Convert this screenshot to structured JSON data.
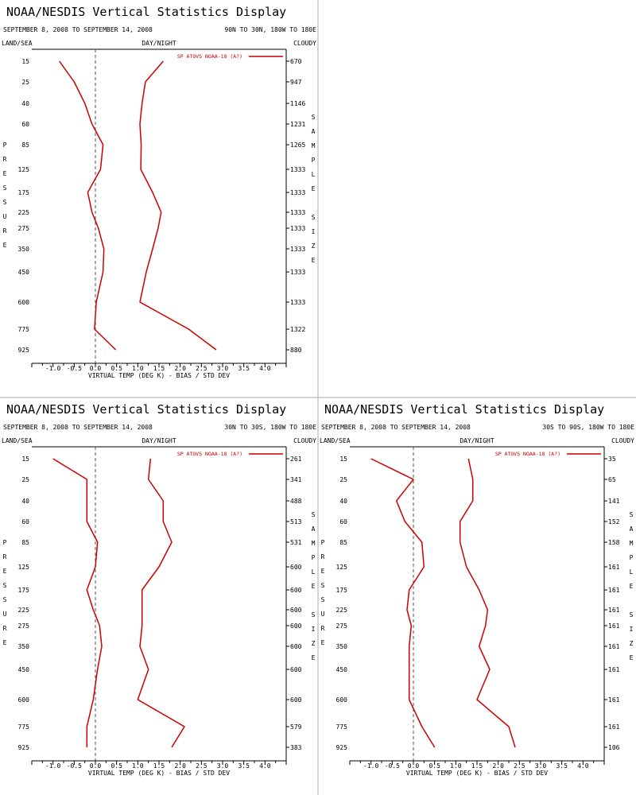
{
  "page": {
    "background": "#ffffff",
    "divider_color": "#aaaaaa"
  },
  "chart_data": [
    {
      "type": "line",
      "title": "NOAA/NESDIS Vertical Statistics Display",
      "date_range": "SEPTEMBER 8, 2008 TO SEPTEMBER 14, 2008",
      "region": "90N TO 30N, 180W TO 180E",
      "left_header": "LAND/SEA",
      "center_header": "DAY/NIGHT",
      "right_header": "CLOUDY",
      "left_axis_label": "PRESSURE",
      "right_axis_label": "SAMPLE SIZE",
      "xlabel": "VIRTUAL TEMP (DEG K) - BIAS / STD DEV",
      "xlim": [
        -1.5,
        4.5
      ],
      "x_ticks": [
        -1.0,
        -0.5,
        0.0,
        0.5,
        1.0,
        1.5,
        2.0,
        2.5,
        3.0,
        3.5,
        4.0
      ],
      "x_tick_labels": [
        "-1.0",
        "-0.5",
        "0.0",
        "0.5",
        "1.0",
        "1.5",
        "2.0",
        "2.5",
        "3.0",
        "3.5",
        "4.0"
      ],
      "pressure_levels": [
        "15",
        "25",
        "40",
        "60",
        "85",
        "125",
        "175",
        "225",
        "275",
        "350",
        "450",
        "600",
        "775",
        "925"
      ],
      "sample_sizes": [
        "670",
        "947",
        "1146",
        "1231",
        "1265",
        "1333",
        "1333",
        "1333",
        "1333",
        "1333",
        "1333",
        "1333",
        "1322",
        "880"
      ],
      "legend": "SP ATOVS NOAA-18 (A?)",
      "line_color": "#cc0000",
      "series": [
        {
          "metric": "bias",
          "values": [
            -0.85,
            -0.5,
            -0.25,
            -0.08,
            0.18,
            0.12,
            -0.18,
            -0.08,
            0.07,
            0.2,
            0.18,
            0.02,
            -0.02,
            0.48
          ]
        },
        {
          "metric": "std_dev",
          "values": [
            1.6,
            1.18,
            1.1,
            1.05,
            1.08,
            1.07,
            1.35,
            1.55,
            1.48,
            1.35,
            1.2,
            1.05,
            2.2,
            2.85
          ]
        }
      ]
    },
    {
      "type": "line",
      "title": "NOAA/NESDIS Vertical Statistics Display",
      "date_range": "SEPTEMBER 8, 2008 TO SEPTEMBER 14, 2008",
      "region": "30N TO 30S, 180W TO 180E",
      "left_header": "LAND/SEA",
      "center_header": "DAY/NIGHT",
      "right_header": "CLOUDY",
      "left_axis_label": "PRESSURE",
      "right_axis_label": "SAMPLE SIZE",
      "xlabel": "VIRTUAL TEMP (DEG K) - BIAS / STD DEV",
      "xlim": [
        -1.5,
        4.5
      ],
      "x_ticks": [
        -1.0,
        -0.5,
        0.0,
        0.5,
        1.0,
        1.5,
        2.0,
        2.5,
        3.0,
        3.5,
        4.0
      ],
      "x_tick_labels": [
        "-1.0",
        "-0.5",
        "0.0",
        "0.5",
        "1.0",
        "1.5",
        "2.0",
        "2.5",
        "3.0",
        "3.5",
        "4.0"
      ],
      "pressure_levels": [
        "15",
        "25",
        "40",
        "60",
        "85",
        "125",
        "175",
        "225",
        "275",
        "350",
        "450",
        "600",
        "775",
        "925"
      ],
      "sample_sizes": [
        "261",
        "341",
        "488",
        "513",
        "531",
        "600",
        "600",
        "600",
        "600",
        "600",
        "600",
        "600",
        "579",
        "383"
      ],
      "legend": "SP ATOVS NOAA-18 (A?)",
      "line_color": "#cc0000",
      "series": [
        {
          "metric": "bias",
          "values": [
            -1.0,
            -0.2,
            -0.2,
            -0.2,
            0.05,
            0.0,
            -0.2,
            -0.05,
            0.1,
            0.15,
            0.05,
            -0.05,
            -0.2,
            -0.2
          ]
        },
        {
          "metric": "std_dev",
          "values": [
            1.3,
            1.25,
            1.6,
            1.6,
            1.8,
            1.5,
            1.1,
            1.1,
            1.1,
            1.05,
            1.25,
            1.0,
            2.1,
            1.8
          ]
        }
      ]
    },
    {
      "type": "line",
      "title": "NOAA/NESDIS Vertical Statistics Display",
      "date_range": "SEPTEMBER 8, 2008 TO SEPTEMBER 14, 2008",
      "region": "30S TO 90S, 180W TO 180E",
      "left_header": "LAND/SEA",
      "center_header": "DAY/NIGHT",
      "right_header": "CLOUDY",
      "left_axis_label": "PRESSURE",
      "right_axis_label": "SAMPLE SIZE",
      "xlabel": "VIRTUAL TEMP (DEG K) - BIAS / STD DEV",
      "xlim": [
        -1.5,
        4.5
      ],
      "x_ticks": [
        -1.0,
        -0.5,
        0.0,
        0.5,
        1.0,
        1.5,
        2.0,
        2.5,
        3.0,
        3.5,
        4.0
      ],
      "x_tick_labels": [
        "-1.0",
        "-0.5",
        "0.0",
        "0.5",
        "1.0",
        "1.5",
        "2.0",
        "2.5",
        "3.0",
        "3.5",
        "4.0"
      ],
      "pressure_levels": [
        "15",
        "25",
        "40",
        "60",
        "85",
        "125",
        "175",
        "225",
        "275",
        "350",
        "450",
        "600",
        "775",
        "925"
      ],
      "sample_sizes": [
        "35",
        "65",
        "141",
        "152",
        "158",
        "161",
        "161",
        "161",
        "161",
        "161",
        "161",
        "161",
        "161",
        "106"
      ],
      "legend": "SP ATOVS NOAA-18 (A?)",
      "line_color": "#cc0000",
      "series": [
        {
          "metric": "bias",
          "values": [
            -1.0,
            0.0,
            -0.4,
            -0.2,
            0.2,
            0.25,
            -0.1,
            -0.15,
            -0.05,
            -0.1,
            -0.1,
            -0.1,
            0.2,
            0.5
          ]
        },
        {
          "metric": "std_dev",
          "values": [
            1.3,
            1.4,
            1.4,
            1.1,
            1.1,
            1.25,
            1.55,
            1.75,
            1.7,
            1.55,
            1.8,
            1.5,
            2.25,
            2.4
          ]
        }
      ]
    }
  ]
}
